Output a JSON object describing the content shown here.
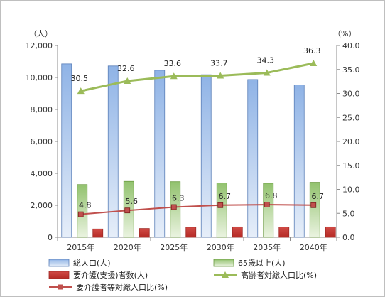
{
  "chart_data": {
    "type": "bar",
    "categories": [
      "2015年",
      "2020年",
      "2025年",
      "2030年",
      "2035年",
      "2040年"
    ],
    "left_axis": {
      "unit_label": "（人）",
      "ylim": [
        0,
        12000
      ],
      "ticks": [
        "0",
        "2,000",
        "4,000",
        "6,000",
        "8,000",
        "10,000",
        "12,000"
      ],
      "tick_values": [
        0,
        2000,
        4000,
        6000,
        8000,
        10000,
        12000
      ]
    },
    "right_axis": {
      "unit_label": "（%）",
      "ylim": [
        0,
        40
      ],
      "ticks": [
        "0.0",
        "5.0",
        "10.0",
        "15.0",
        "20.0",
        "25.0",
        "30.0",
        "35.0",
        "40.0"
      ],
      "tick_values": [
        0,
        5,
        10,
        15,
        20,
        25,
        30,
        35,
        40
      ]
    },
    "series": [
      {
        "name": "総人口(人)",
        "kind": "bar",
        "axis": "left",
        "color": "#4f81bd",
        "values": [
          10850,
          10720,
          10450,
          10170,
          9870,
          9530
        ]
      },
      {
        "name": "65歳以上(人)",
        "kind": "bar",
        "axis": "left",
        "color": "#9bbb59",
        "values": [
          3300,
          3500,
          3480,
          3400,
          3380,
          3440
        ]
      },
      {
        "name": "要介護(支援)者数(人)",
        "kind": "bar",
        "axis": "left",
        "color": "#c0504d",
        "values": [
          520,
          550,
          630,
          650,
          640,
          650
        ]
      },
      {
        "name": "高齢者対総人口比(%)",
        "kind": "line",
        "axis": "right",
        "color": "#9bbb59",
        "marker": "triangle",
        "values": [
          30.5,
          32.6,
          33.6,
          33.7,
          34.3,
          36.3
        ],
        "labels": [
          "30.5",
          "32.6",
          "33.6",
          "33.7",
          "34.3",
          "36.3"
        ]
      },
      {
        "name": "要介護者等対総人口比(%)",
        "kind": "line",
        "axis": "right",
        "color": "#c0504d",
        "marker": "square",
        "values": [
          4.8,
          5.6,
          6.3,
          6.7,
          6.8,
          6.7
        ],
        "labels": [
          "4.8",
          "5.6",
          "6.3",
          "6.7",
          "6.8",
          "6.7"
        ]
      }
    ],
    "legend": {
      "placement": "bottom"
    },
    "grid": false
  }
}
